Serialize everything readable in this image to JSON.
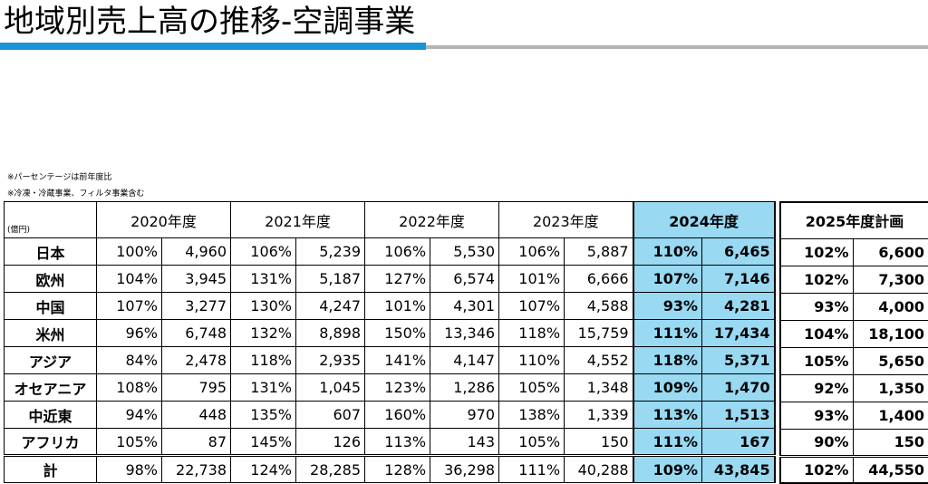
{
  "title": "地域別売上高の推移-空調事業",
  "notes": [
    "※パーセンテージは前年度比",
    "※冷凍・冷蔵事業、フィルタ事業含む"
  ],
  "unit": "(億円)",
  "years": [
    "2020年度",
    "2021年度",
    "2022年度",
    "2023年度",
    "2024年度"
  ],
  "plan_header": "2025年度計画",
  "rows": [
    {
      "region": "日本",
      "v": [
        [
          "100%",
          "4,960"
        ],
        [
          "106%",
          "5,239"
        ],
        [
          "106%",
          "5,530"
        ],
        [
          "106%",
          "5,887"
        ],
        [
          "110%",
          "6,465"
        ]
      ],
      "plan": [
        "102%",
        "6,600"
      ]
    },
    {
      "region": "欧州",
      "v": [
        [
          "104%",
          "3,945"
        ],
        [
          "131%",
          "5,187"
        ],
        [
          "127%",
          "6,574"
        ],
        [
          "101%",
          "6,666"
        ],
        [
          "107%",
          "7,146"
        ]
      ],
      "plan": [
        "102%",
        "7,300"
      ]
    },
    {
      "region": "中国",
      "v": [
        [
          "107%",
          "3,277"
        ],
        [
          "130%",
          "4,247"
        ],
        [
          "101%",
          "4,301"
        ],
        [
          "107%",
          "4,588"
        ],
        [
          "93%",
          "4,281"
        ]
      ],
      "plan": [
        "93%",
        "4,000"
      ]
    },
    {
      "region": "米州",
      "v": [
        [
          "96%",
          "6,748"
        ],
        [
          "132%",
          "8,898"
        ],
        [
          "150%",
          "13,346"
        ],
        [
          "118%",
          "15,759"
        ],
        [
          "111%",
          "17,434"
        ]
      ],
      "plan": [
        "104%",
        "18,100"
      ]
    },
    {
      "region": "アジア",
      "v": [
        [
          "84%",
          "2,478"
        ],
        [
          "118%",
          "2,935"
        ],
        [
          "141%",
          "4,147"
        ],
        [
          "110%",
          "4,552"
        ],
        [
          "118%",
          "5,371"
        ]
      ],
      "plan": [
        "105%",
        "5,650"
      ]
    },
    {
      "region": "オセアニア",
      "v": [
        [
          "108%",
          "795"
        ],
        [
          "131%",
          "1,045"
        ],
        [
          "123%",
          "1,286"
        ],
        [
          "105%",
          "1,348"
        ],
        [
          "109%",
          "1,470"
        ]
      ],
      "plan": [
        "92%",
        "1,350"
      ]
    },
    {
      "region": "中近東",
      "v": [
        [
          "94%",
          "448"
        ],
        [
          "135%",
          "607"
        ],
        [
          "160%",
          "970"
        ],
        [
          "138%",
          "1,339"
        ],
        [
          "113%",
          "1,513"
        ]
      ],
      "plan": [
        "93%",
        "1,400"
      ]
    },
    {
      "region": "アフリカ",
      "v": [
        [
          "105%",
          "87"
        ],
        [
          "145%",
          "126"
        ],
        [
          "113%",
          "143"
        ],
        [
          "105%",
          "150"
        ],
        [
          "111%",
          "167"
        ]
      ],
      "plan": [
        "90%",
        "150"
      ]
    },
    {
      "region": "計",
      "v": [
        [
          "98%",
          "22,738"
        ],
        [
          "124%",
          "28,285"
        ],
        [
          "128%",
          "36,298"
        ],
        [
          "111%",
          "40,288"
        ],
        [
          "109%",
          "43,845"
        ]
      ],
      "plan": [
        "102%",
        "44,550"
      ]
    }
  ]
}
